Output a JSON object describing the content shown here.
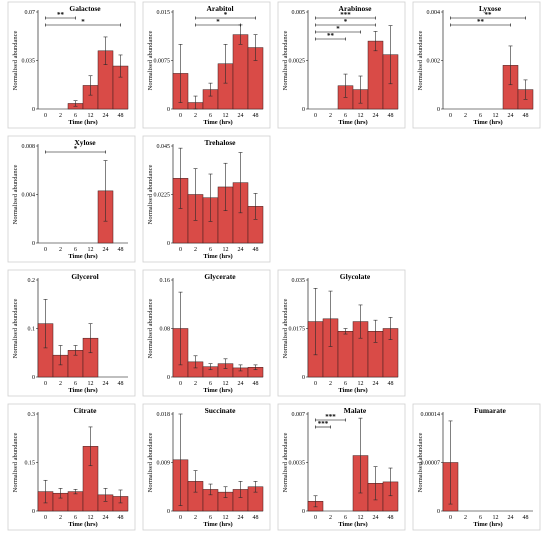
{
  "chart_data": [
    {
      "type": "bar",
      "title": "Galactose",
      "xlabel": "Time (hrs)",
      "ylabel": "Normalised abundance",
      "categories": [
        "0",
        "2",
        "6",
        "12",
        "24",
        "48"
      ],
      "ylim": [
        0,
        0.07
      ],
      "yticks": [
        "0",
        "0.035",
        "0.07"
      ],
      "values": [
        0,
        0,
        0.004,
        0.017,
        0.042,
        0.031
      ],
      "errors": [
        0,
        0,
        0.002,
        0.007,
        0.01,
        0.008
      ],
      "annotations": [
        {
          "from": "0",
          "to": "6",
          "label": "**"
        },
        {
          "from": "0",
          "to": "48",
          "label": "*"
        }
      ]
    },
    {
      "type": "bar",
      "title": "Arabitol",
      "xlabel": "Time (hrs)",
      "ylabel": "Normalised abundance",
      "categories": [
        "0",
        "2",
        "6",
        "12",
        "24",
        "48"
      ],
      "ylim": [
        0,
        0.015
      ],
      "yticks": [
        "0",
        "0.0075",
        "0.015"
      ],
      "values": [
        0.0055,
        0.001,
        0.003,
        0.007,
        0.0115,
        0.0095
      ],
      "errors": [
        0.0045,
        0.001,
        0.001,
        0.003,
        0.0015,
        0.002
      ],
      "annotations": [
        {
          "from": "2",
          "to": "48",
          "label": "*"
        },
        {
          "from": "2",
          "to": "24",
          "label": "*"
        }
      ]
    },
    {
      "type": "bar",
      "title": "Arabinose",
      "xlabel": "Time (hrs)",
      "ylabel": "Normalised abundance",
      "categories": [
        "0",
        "2",
        "6",
        "12",
        "24",
        "48"
      ],
      "ylim": [
        0,
        0.005
      ],
      "yticks": [
        "0",
        "0.0025",
        "0.005"
      ],
      "values": [
        0,
        0,
        0.0012,
        0.001,
        0.0035,
        0.0028
      ],
      "errors": [
        0,
        0,
        0.0006,
        0.0007,
        0.0005,
        0.0015
      ],
      "annotations": [
        {
          "from": "0",
          "to": "24",
          "label": "***"
        },
        {
          "from": "0",
          "to": "24",
          "label": "*"
        },
        {
          "from": "0",
          "to": "12",
          "label": "*"
        },
        {
          "from": "0",
          "to": "6",
          "label": "**"
        }
      ]
    },
    {
      "type": "bar",
      "title": "Lyxose",
      "xlabel": "Time (hrs)",
      "ylabel": "Normalised abundance",
      "categories": [
        "0",
        "2",
        "6",
        "12",
        "24",
        "48"
      ],
      "ylim": [
        0,
        0.004
      ],
      "yticks": [
        "0",
        "0.002",
        "0.004"
      ],
      "values": [
        0,
        0,
        0,
        0,
        0.0018,
        0.0008
      ],
      "errors": [
        0,
        0,
        0,
        0,
        0.0008,
        0.0004
      ],
      "annotations": [
        {
          "from": "0",
          "to": "48",
          "label": "**"
        },
        {
          "from": "0",
          "to": "24",
          "label": "**"
        }
      ]
    },
    {
      "type": "bar",
      "title": "Xylose",
      "xlabel": "Time (hrs)",
      "ylabel": "Normalised abundance",
      "categories": [
        "0",
        "2",
        "6",
        "12",
        "24",
        "48"
      ],
      "ylim": [
        0,
        0.008
      ],
      "yticks": [
        "0",
        "0.004",
        "0.008"
      ],
      "values": [
        0,
        0,
        0,
        0,
        0.0043,
        0
      ],
      "errors": [
        0,
        0,
        0,
        0,
        0.0025,
        0
      ],
      "annotations": [
        {
          "from": "0",
          "to": "24",
          "label": "*"
        }
      ]
    },
    {
      "type": "bar",
      "title": "Trehalose",
      "xlabel": "Time (hrs)",
      "ylabel": "Normalised abundance",
      "categories": [
        "0",
        "2",
        "6",
        "12",
        "24",
        "48"
      ],
      "ylim": [
        0,
        0.045
      ],
      "yticks": [
        "0",
        "0.0225",
        "0.045"
      ],
      "values": [
        0.03,
        0.0225,
        0.021,
        0.026,
        0.028,
        0.017
      ],
      "errors": [
        0.014,
        0.012,
        0.011,
        0.011,
        0.014,
        0.006
      ],
      "annotations": []
    },
    {
      "type": "bar",
      "title": "Glycerol",
      "xlabel": "Time (hrs)",
      "ylabel": "Normalised abundance",
      "categories": [
        "0",
        "2",
        "6",
        "12",
        "24",
        "48"
      ],
      "ylim": [
        0,
        0.2
      ],
      "yticks": [
        "0",
        "0.1",
        "0.2"
      ],
      "values": [
        0.11,
        0.045,
        0.055,
        0.08,
        0,
        0
      ],
      "errors": [
        0.05,
        0.02,
        0.01,
        0.03,
        0,
        0
      ],
      "annotations": []
    },
    {
      "type": "bar",
      "title": "Glycerate",
      "xlabel": "Time (hrs)",
      "ylabel": "Normalised abundance",
      "categories": [
        "0",
        "2",
        "6",
        "12",
        "24",
        "48"
      ],
      "ylim": [
        0,
        0.16
      ],
      "yticks": [
        "0",
        "0.08",
        "0.16"
      ],
      "values": [
        0.08,
        0.025,
        0.017,
        0.022,
        0.015,
        0.016
      ],
      "errors": [
        0.06,
        0.01,
        0.005,
        0.008,
        0.005,
        0.004
      ],
      "annotations": []
    },
    {
      "type": "bar",
      "title": "Glycolate",
      "xlabel": "Time (hrs)",
      "ylabel": "Normalised abundance",
      "categories": [
        "0",
        "2",
        "6",
        "12",
        "24",
        "48"
      ],
      "ylim": [
        0,
        0.035
      ],
      "yticks": [
        "0",
        "0.0175",
        "0.035"
      ],
      "values": [
        0.02,
        0.021,
        0.0165,
        0.02,
        0.0165,
        0.0175
      ],
      "errors": [
        0.012,
        0.01,
        0.001,
        0.006,
        0.004,
        0.004
      ],
      "annotations": []
    },
    {
      "type": "bar",
      "title": "Citrate",
      "xlabel": "Time (hrs)",
      "ylabel": "Normalised abundance",
      "categories": [
        "0",
        "2",
        "6",
        "12",
        "24",
        "48"
      ],
      "ylim": [
        0,
        0.3
      ],
      "yticks": [
        "0",
        "0.15",
        "0.3"
      ],
      "values": [
        0.06,
        0.055,
        0.06,
        0.2,
        0.05,
        0.045
      ],
      "errors": [
        0.035,
        0.015,
        0.007,
        0.06,
        0.02,
        0.02
      ],
      "annotations": []
    },
    {
      "type": "bar",
      "title": "Succinate",
      "xlabel": "Time (hrs)",
      "ylabel": "Normalised abundance",
      "categories": [
        "0",
        "2",
        "6",
        "12",
        "24",
        "48"
      ],
      "ylim": [
        0,
        0.018
      ],
      "yticks": [
        "0",
        "0.009",
        "0.018"
      ],
      "values": [
        0.0095,
        0.0055,
        0.004,
        0.0035,
        0.004,
        0.0045
      ],
      "errors": [
        0.0085,
        0.002,
        0.001,
        0.001,
        0.0015,
        0.001
      ],
      "annotations": []
    },
    {
      "type": "bar",
      "title": "Malate",
      "xlabel": "Time (hrs)",
      "ylabel": "Normalised abundance",
      "categories": [
        "0",
        "2",
        "6",
        "12",
        "24",
        "48"
      ],
      "ylim": [
        0,
        0.007
      ],
      "yticks": [
        "0",
        "0.0035",
        "0.007"
      ],
      "values": [
        0.0007,
        0,
        0,
        0.004,
        0.002,
        0.0021
      ],
      "errors": [
        0.0004,
        0,
        0,
        0.0027,
        0.0012,
        0.001
      ],
      "annotations": [
        {
          "from": "0",
          "to": "6",
          "label": "***"
        },
        {
          "from": "0",
          "to": "2",
          "label": "***"
        }
      ]
    },
    {
      "type": "bar",
      "title": "Fumarate",
      "xlabel": "Time (hrs)",
      "ylabel": "Normalised abundance",
      "categories": [
        "0",
        "2",
        "6",
        "12",
        "24",
        "48"
      ],
      "ylim": [
        0,
        0.00014
      ],
      "yticks": [
        "0",
        "0.00007",
        "0.00014"
      ],
      "values": [
        7e-05,
        0,
        0,
        0,
        0,
        0
      ],
      "errors": [
        6e-05,
        0,
        0,
        0,
        0,
        0
      ],
      "annotations": []
    }
  ]
}
